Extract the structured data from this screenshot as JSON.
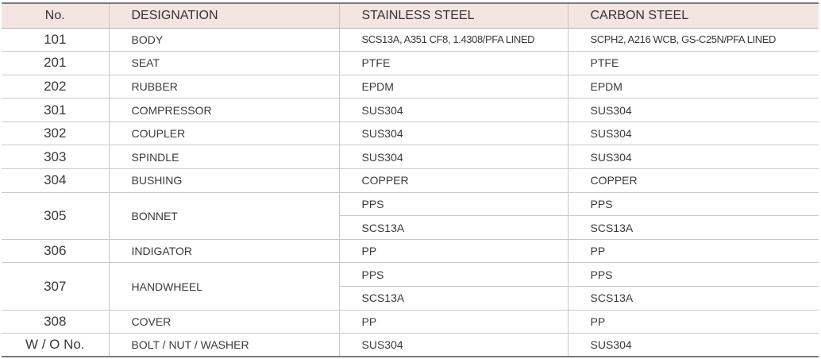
{
  "headers": [
    "No.",
    "DESIGNATION",
    "STAINLESS STEEL",
    "CARBON STEEL"
  ],
  "rows": [
    {
      "no": "101",
      "designation": "BODY",
      "materials": [
        [
          "SCS13A, A351 CF8, 1.4308/PFA LINED",
          "SCPH2, A216 WCB, GS-C25N/PFA LINED"
        ]
      ]
    },
    {
      "no": "201",
      "designation": "SEAT",
      "materials": [
        [
          "PTFE",
          "PTFE"
        ]
      ]
    },
    {
      "no": "202",
      "designation": "RUBBER",
      "materials": [
        [
          "EPDM",
          "EPDM"
        ]
      ]
    },
    {
      "no": "301",
      "designation": "COMPRESSOR",
      "materials": [
        [
          "SUS304",
          "SUS304"
        ]
      ]
    },
    {
      "no": "302",
      "designation": "COUPLER",
      "materials": [
        [
          "SUS304",
          "SUS304"
        ]
      ]
    },
    {
      "no": "303",
      "designation": "SPINDLE",
      "materials": [
        [
          "SUS304",
          "SUS304"
        ]
      ]
    },
    {
      "no": "304",
      "designation": "BUSHING",
      "materials": [
        [
          "COPPER",
          "COPPER"
        ]
      ]
    },
    {
      "no": "305",
      "designation": "BONNET",
      "materials": [
        [
          "PPS",
          "PPS"
        ],
        [
          "SCS13A",
          "SCS13A"
        ]
      ]
    },
    {
      "no": "306",
      "designation": "INDIGATOR",
      "materials": [
        [
          "PP",
          "PP"
        ]
      ]
    },
    {
      "no": "307",
      "designation": "HANDWHEEL",
      "materials": [
        [
          "PPS",
          "PPS"
        ],
        [
          "SCS13A",
          "SCS13A"
        ]
      ]
    },
    {
      "no": "308",
      "designation": "COVER",
      "materials": [
        [
          "PP",
          "PP"
        ]
      ]
    },
    {
      "no": "W / O No.",
      "designation": "BOLT / NUT / WASHER",
      "materials": [
        [
          "SUS304",
          "SUS304"
        ]
      ]
    }
  ]
}
